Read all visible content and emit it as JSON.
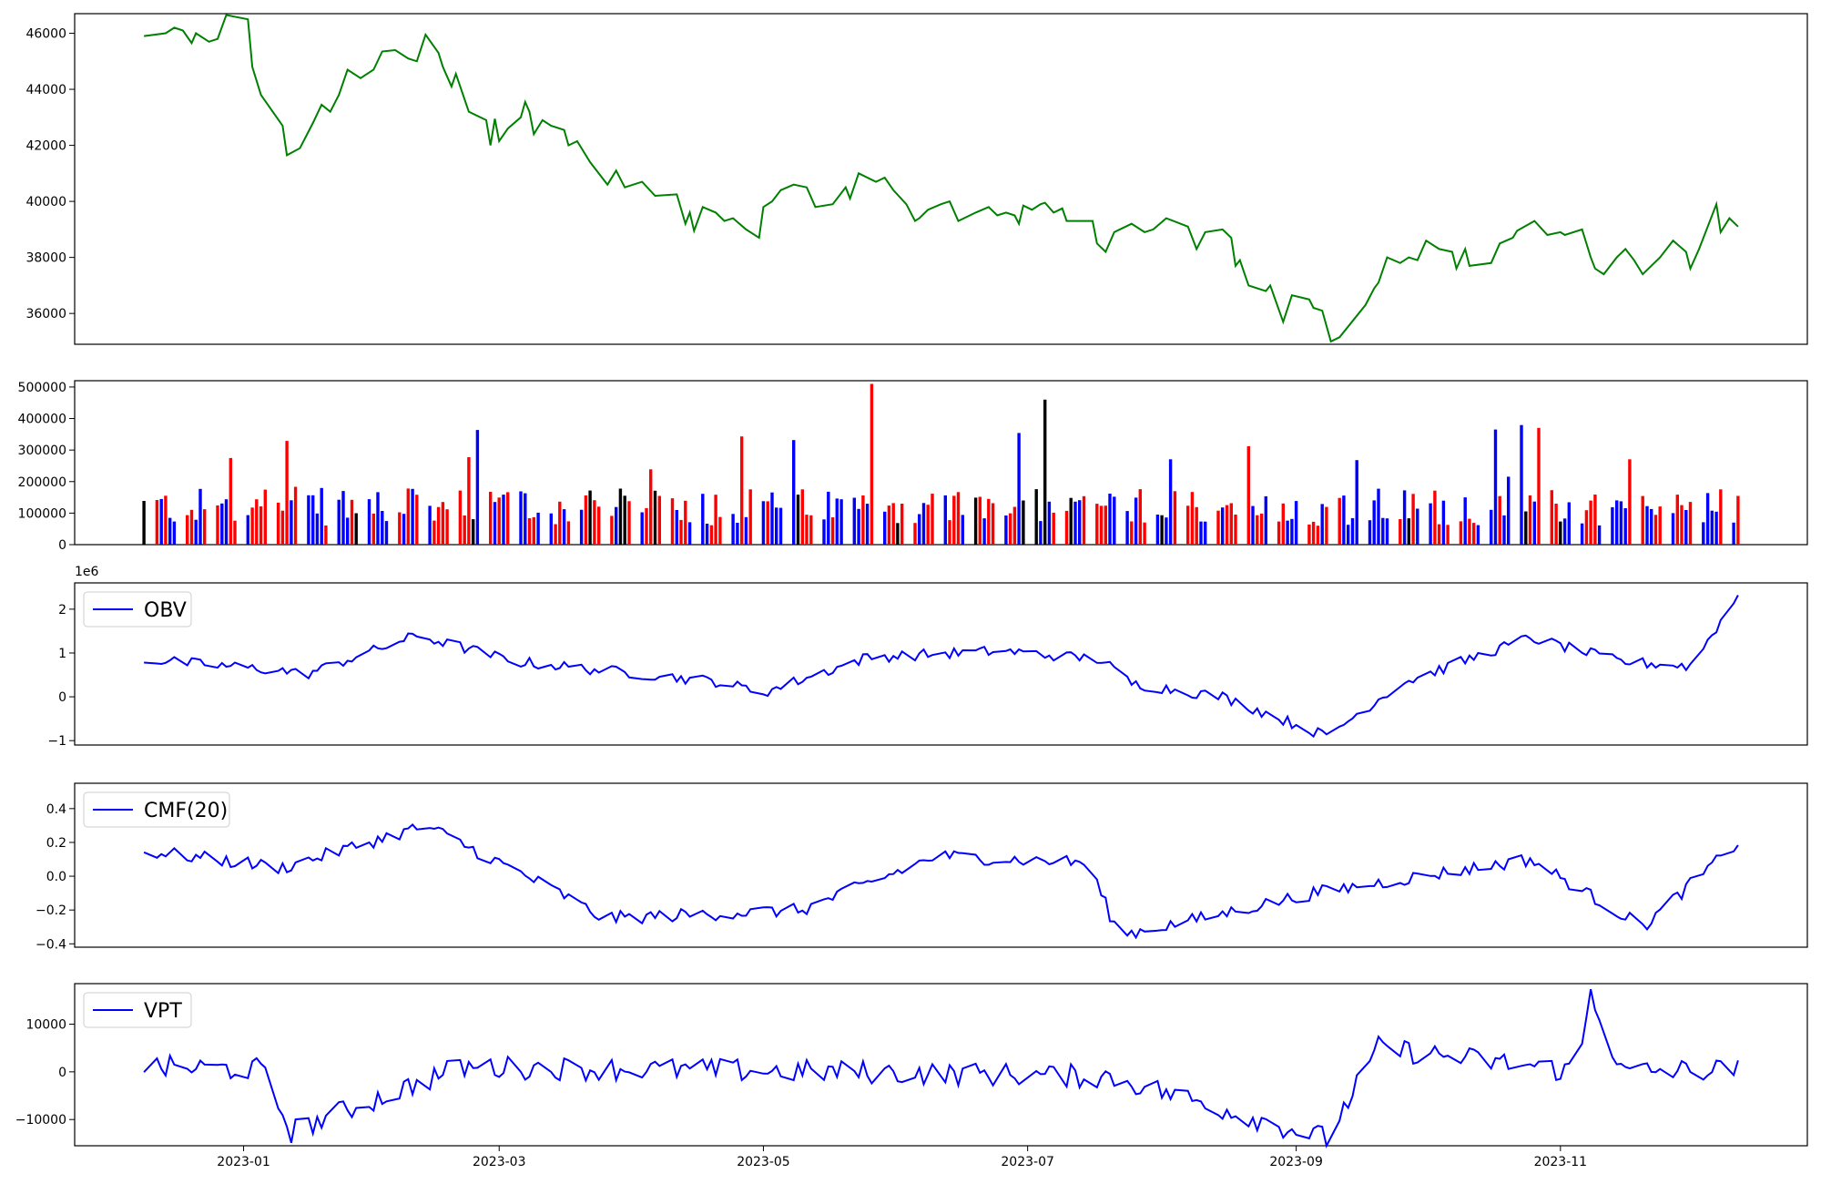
{
  "chart_data": [
    {
      "type": "line",
      "panel": "price",
      "color": "#008000",
      "ylim": [
        34900,
        46700
      ],
      "yticks": [
        36000,
        38000,
        40000,
        42000,
        44000,
        46000
      ],
      "x_start": "2022-12-09",
      "x_end": "2023-12-12",
      "points": [
        [
          "2022-12-09",
          45900
        ],
        [
          "2022-12-14",
          46000
        ],
        [
          "2022-12-16",
          46200
        ],
        [
          "2022-12-18",
          46100
        ],
        [
          "2022-12-20",
          45650
        ],
        [
          "2022-12-21",
          46000
        ],
        [
          "2022-12-24",
          45700
        ],
        [
          "2022-12-26",
          45800
        ],
        [
          "2022-12-28",
          46650
        ],
        [
          "2023-01-02",
          46500
        ],
        [
          "2023-01-03",
          44800
        ],
        [
          "2023-01-05",
          43800
        ],
        [
          "2023-01-10",
          42700
        ],
        [
          "2023-01-11",
          41650
        ],
        [
          "2023-01-14",
          41900
        ],
        [
          "2023-01-17",
          42800
        ],
        [
          "2023-01-19",
          43450
        ],
        [
          "2023-01-21",
          43200
        ],
        [
          "2023-01-23",
          43800
        ],
        [
          "2023-01-25",
          44700
        ],
        [
          "2023-01-28",
          44400
        ],
        [
          "2023-01-31",
          44700
        ],
        [
          "2023-02-02",
          45350
        ],
        [
          "2023-02-05",
          45400
        ],
        [
          "2023-02-08",
          45100
        ],
        [
          "2023-02-10",
          45000
        ],
        [
          "2023-02-12",
          45950
        ],
        [
          "2023-02-15",
          45300
        ],
        [
          "2023-02-16",
          44800
        ],
        [
          "2023-02-18",
          44100
        ],
        [
          "2023-02-19",
          44550
        ],
        [
          "2023-02-22",
          43200
        ],
        [
          "2023-02-26",
          42900
        ],
        [
          "2023-02-27",
          42000
        ],
        [
          "2023-02-28",
          42950
        ],
        [
          "2023-03-01",
          42150
        ],
        [
          "2023-03-03",
          42600
        ],
        [
          "2023-03-06",
          43000
        ],
        [
          "2023-03-07",
          43550
        ],
        [
          "2023-03-08",
          43200
        ],
        [
          "2023-03-09",
          42400
        ],
        [
          "2023-03-11",
          42900
        ],
        [
          "2023-03-13",
          42700
        ],
        [
          "2023-03-16",
          42550
        ],
        [
          "2023-03-17",
          42000
        ],
        [
          "2023-03-19",
          42150
        ],
        [
          "2023-03-22",
          41400
        ],
        [
          "2023-03-26",
          40600
        ],
        [
          "2023-03-28",
          41100
        ],
        [
          "2023-03-30",
          40500
        ],
        [
          "2023-04-03",
          40700
        ],
        [
          "2023-04-06",
          40200
        ],
        [
          "2023-04-11",
          40250
        ],
        [
          "2023-04-13",
          39200
        ],
        [
          "2023-04-14",
          39600
        ],
        [
          "2023-04-15",
          38950
        ],
        [
          "2023-04-17",
          39800
        ],
        [
          "2023-04-20",
          39600
        ],
        [
          "2023-04-22",
          39300
        ],
        [
          "2023-04-24",
          39400
        ],
        [
          "2023-04-27",
          39000
        ],
        [
          "2023-04-30",
          38700
        ],
        [
          "2023-05-01",
          39800
        ],
        [
          "2023-05-03",
          40000
        ],
        [
          "2023-05-05",
          40400
        ],
        [
          "2023-05-08",
          40600
        ],
        [
          "2023-05-11",
          40500
        ],
        [
          "2023-05-13",
          39800
        ],
        [
          "2023-05-17",
          39900
        ],
        [
          "2023-05-20",
          40500
        ],
        [
          "2023-05-21",
          40100
        ],
        [
          "2023-05-23",
          41000
        ],
        [
          "2023-05-27",
          40700
        ],
        [
          "2023-05-29",
          40850
        ],
        [
          "2023-05-31",
          40400
        ],
        [
          "2023-06-03",
          39900
        ],
        [
          "2023-06-05",
          39300
        ],
        [
          "2023-06-06",
          39400
        ],
        [
          "2023-06-08",
          39700
        ],
        [
          "2023-06-11",
          39900
        ],
        [
          "2023-06-13",
          40000
        ],
        [
          "2023-06-15",
          39300
        ],
        [
          "2023-06-19",
          39600
        ],
        [
          "2023-06-22",
          39800
        ],
        [
          "2023-06-24",
          39500
        ],
        [
          "2023-06-26",
          39600
        ],
        [
          "2023-06-28",
          39500
        ],
        [
          "2023-06-29",
          39200
        ],
        [
          "2023-06-30",
          39850
        ],
        [
          "2023-07-02",
          39700
        ],
        [
          "2023-07-04",
          39900
        ],
        [
          "2023-07-05",
          39950
        ],
        [
          "2023-07-07",
          39600
        ],
        [
          "2023-07-09",
          39750
        ],
        [
          "2023-07-10",
          39300
        ],
        [
          "2023-07-16",
          39300
        ],
        [
          "2023-07-17",
          38500
        ],
        [
          "2023-07-19",
          38200
        ],
        [
          "2023-07-21",
          38900
        ],
        [
          "2023-07-25",
          39200
        ],
        [
          "2023-07-28",
          38900
        ],
        [
          "2023-07-30",
          39000
        ],
        [
          "2023-08-02",
          39400
        ],
        [
          "2023-08-07",
          39100
        ],
        [
          "2023-08-09",
          38300
        ],
        [
          "2023-08-11",
          38900
        ],
        [
          "2023-08-15",
          39000
        ],
        [
          "2023-08-17",
          38700
        ],
        [
          "2023-08-18",
          37700
        ],
        [
          "2023-08-19",
          37900
        ],
        [
          "2023-08-21",
          37000
        ],
        [
          "2023-08-25",
          36800
        ],
        [
          "2023-08-26",
          37000
        ],
        [
          "2023-08-29",
          35700
        ],
        [
          "2023-08-31",
          36650
        ],
        [
          "2023-09-04",
          36500
        ],
        [
          "2023-09-05",
          36200
        ],
        [
          "2023-09-07",
          36100
        ],
        [
          "2023-09-09",
          35000
        ],
        [
          "2023-09-11",
          35150
        ],
        [
          "2023-09-17",
          36300
        ],
        [
          "2023-09-19",
          36900
        ],
        [
          "2023-09-20",
          37100
        ],
        [
          "2023-09-22",
          38000
        ],
        [
          "2023-09-25",
          37800
        ],
        [
          "2023-09-27",
          38000
        ],
        [
          "2023-09-29",
          37900
        ],
        [
          "2023-10-01",
          38600
        ],
        [
          "2023-10-04",
          38300
        ],
        [
          "2023-10-07",
          38200
        ],
        [
          "2023-10-08",
          37600
        ],
        [
          "2023-10-10",
          38300
        ],
        [
          "2023-10-11",
          37700
        ],
        [
          "2023-10-16",
          37800
        ],
        [
          "2023-10-18",
          38500
        ],
        [
          "2023-10-21",
          38700
        ],
        [
          "2023-10-22",
          38950
        ],
        [
          "2023-10-26",
          39300
        ],
        [
          "2023-10-29",
          38800
        ],
        [
          "2023-11-01",
          38900
        ],
        [
          "2023-11-02",
          38800
        ],
        [
          "2023-11-06",
          39000
        ],
        [
          "2023-11-08",
          38000
        ],
        [
          "2023-11-09",
          37600
        ],
        [
          "2023-11-11",
          37400
        ],
        [
          "2023-11-14",
          38000
        ],
        [
          "2023-11-16",
          38300
        ],
        [
          "2023-11-18",
          37900
        ],
        [
          "2023-11-20",
          37400
        ],
        [
          "2023-11-24",
          38000
        ],
        [
          "2023-11-27",
          38600
        ],
        [
          "2023-11-30",
          38200
        ],
        [
          "2023-12-01",
          37600
        ],
        [
          "2023-12-03",
          38300
        ],
        [
          "2023-12-05",
          39100
        ],
        [
          "2023-12-07",
          39900
        ],
        [
          "2023-12-08",
          38900
        ],
        [
          "2023-12-10",
          39400
        ],
        [
          "2023-12-12",
          39100
        ]
      ]
    }
  ],
  "figure": {
    "x_axis": {
      "tick_labels": [
        "2023-01",
        "2023-03",
        "2023-05",
        "2023-07",
        "2023-09",
        "2023-11"
      ]
    }
  }
}
